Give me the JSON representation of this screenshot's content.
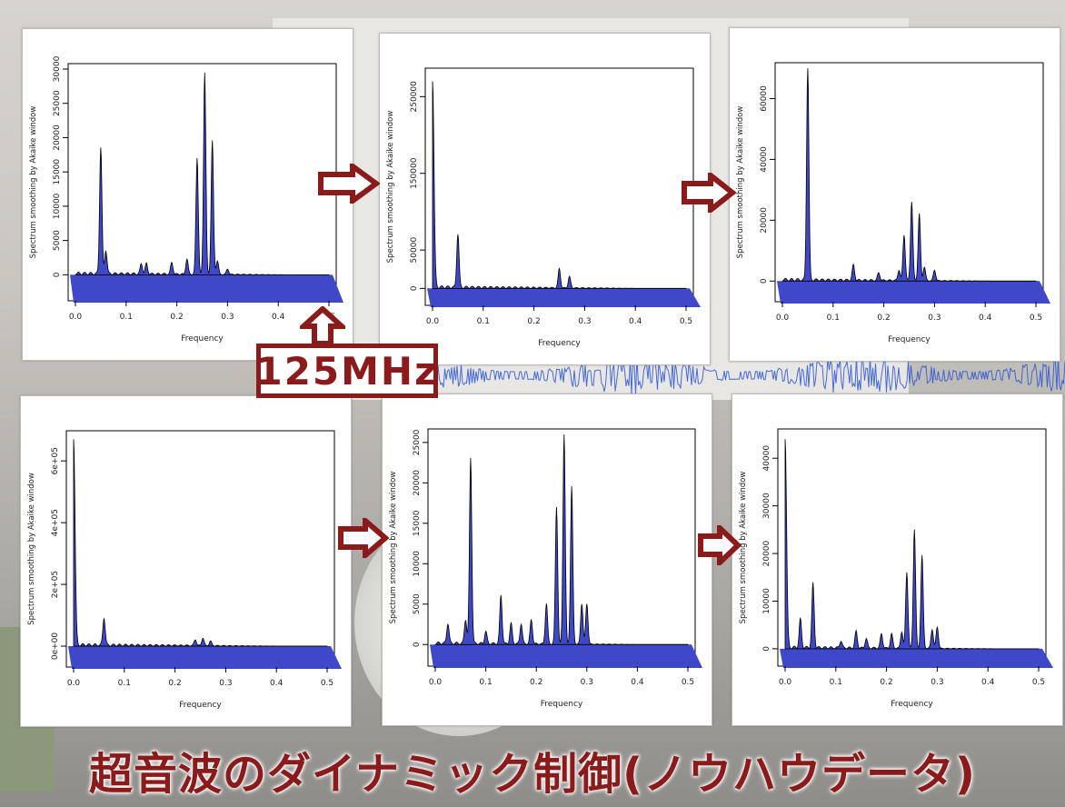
{
  "title": "超音波のダイナミック制御(ノウハウデータ)",
  "marker_label": "125MHz",
  "colors": {
    "fill": "#3f48c8",
    "accent": "#8b1a1a",
    "line": "#000000"
  },
  "chart_data": [
    {
      "type": "area",
      "xlabel": "Frequency",
      "ylabel": "Spectrum smoothing by Akaike window",
      "xlim": [
        0,
        0.5
      ],
      "ylim": [
        -3000,
        30000
      ],
      "xticks": [
        "0.0",
        "0.1",
        "0.2",
        "0.3",
        "0.4",
        "0.5"
      ],
      "yticks": [
        "0",
        "5000",
        "10000",
        "15000",
        "20000",
        "25000",
        "30000"
      ],
      "peaks": [
        [
          0.05,
          18500
        ],
        [
          0.06,
          3500
        ],
        [
          0.13,
          1500
        ],
        [
          0.14,
          1500
        ],
        [
          0.19,
          1700
        ],
        [
          0.22,
          2200
        ],
        [
          0.24,
          17000
        ],
        [
          0.255,
          29500
        ],
        [
          0.27,
          19500
        ],
        [
          0.28,
          2000
        ],
        [
          0.3,
          800
        ]
      ]
    },
    {
      "type": "area",
      "xlabel": "Frequency",
      "ylabel": "Spectrum smoothing by Akaike window",
      "xlim": [
        0,
        0.5
      ],
      "ylim": [
        -15000,
        280000
      ],
      "xticks": [
        "0.0",
        "0.1",
        "0.2",
        "0.3",
        "0.4",
        "0.5"
      ],
      "yticks": [
        "0",
        "50000",
        "150000",
        "250000"
      ],
      "dc": 270000,
      "peaks": [
        [
          0.05,
          70000
        ],
        [
          0.25,
          25000
        ],
        [
          0.27,
          15000
        ]
      ]
    },
    {
      "type": "area",
      "xlabel": "Frequency",
      "ylabel": "Spectrum smoothing by Akaike window",
      "xlim": [
        0,
        0.5
      ],
      "ylim": [
        -5000,
        70000
      ],
      "xticks": [
        "0.0",
        "0.1",
        "0.2",
        "0.3",
        "0.4",
        "0.5"
      ],
      "yticks": [
        "0",
        "20000",
        "40000",
        "60000"
      ],
      "peaks": [
        [
          0.05,
          70000
        ],
        [
          0.14,
          5000
        ],
        [
          0.19,
          2500
        ],
        [
          0.23,
          3500
        ],
        [
          0.24,
          15000
        ],
        [
          0.255,
          26000
        ],
        [
          0.27,
          22000
        ],
        [
          0.28,
          4500
        ],
        [
          0.3,
          3500
        ]
      ]
    },
    {
      "type": "area",
      "xlabel": "Frequency",
      "ylabel": "Spectrum smoothing by Akaike window",
      "xlim": [
        0,
        0.5
      ],
      "ylim": [
        -50000,
        680000
      ],
      "xticks": [
        "0.0",
        "0.1",
        "0.2",
        "0.3",
        "0.4",
        "0.5"
      ],
      "yticks": [
        "0e+00",
        "2e+05",
        "4e+05",
        "6e+05"
      ],
      "dc": 670000,
      "peaks": [
        [
          0.06,
          90000
        ],
        [
          0.24,
          20000
        ],
        [
          0.255,
          25000
        ],
        [
          0.27,
          15000
        ]
      ]
    },
    {
      "type": "area",
      "xlabel": "Frequency",
      "ylabel": "Spectrum smoothing by Akaike window",
      "xlim": [
        0,
        0.5
      ],
      "ylim": [
        -2000,
        26000
      ],
      "xticks": [
        "0.0",
        "0.1",
        "0.2",
        "0.3",
        "0.4",
        "0.5"
      ],
      "yticks": [
        "0",
        "5000",
        "10000",
        "15000",
        "20000",
        "25000"
      ],
      "peaks": [
        [
          0.025,
          2500
        ],
        [
          0.06,
          3000
        ],
        [
          0.07,
          23000
        ],
        [
          0.1,
          1500
        ],
        [
          0.13,
          6000
        ],
        [
          0.15,
          2500
        ],
        [
          0.17,
          2500
        ],
        [
          0.19,
          3000
        ],
        [
          0.22,
          5000
        ],
        [
          0.24,
          17000
        ],
        [
          0.255,
          26000
        ],
        [
          0.27,
          19500
        ],
        [
          0.29,
          5000
        ],
        [
          0.3,
          5000
        ]
      ]
    },
    {
      "type": "area",
      "xlabel": "Frequency",
      "ylabel": "Spectrum smoothing by Akaike window",
      "xlim": [
        0,
        0.5
      ],
      "ylim": [
        -2500,
        45000
      ],
      "xticks": [
        "0.0",
        "0.1",
        "0.2",
        "0.3",
        "0.4",
        "0.5"
      ],
      "yticks": [
        "0",
        "10000",
        "20000",
        "30000",
        "40000"
      ],
      "dc": 44000,
      "peaks": [
        [
          0.03,
          6000
        ],
        [
          0.055,
          13500
        ],
        [
          0.11,
          1500
        ],
        [
          0.14,
          3500
        ],
        [
          0.16,
          2000
        ],
        [
          0.19,
          3000
        ],
        [
          0.21,
          3000
        ],
        [
          0.23,
          3500
        ],
        [
          0.24,
          16000
        ],
        [
          0.255,
          25000
        ],
        [
          0.27,
          19500
        ],
        [
          0.29,
          4000
        ],
        [
          0.3,
          4500
        ]
      ]
    }
  ]
}
